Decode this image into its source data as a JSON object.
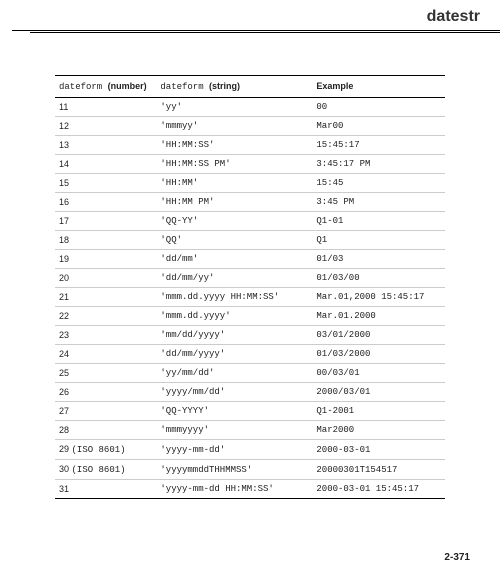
{
  "title": "datestr",
  "page_number": "2-371",
  "table": {
    "headers": {
      "col1_code": "dateform",
      "col1_label": "(number)",
      "col2_code": "dateform",
      "col2_label": "(string)",
      "col3_label": "Example"
    },
    "rows": [
      {
        "num": "11",
        "iso": "",
        "str": "'yy'",
        "ex": "00"
      },
      {
        "num": "12",
        "iso": "",
        "str": "'mmmyy'",
        "ex": "Mar00"
      },
      {
        "num": "13",
        "iso": "",
        "str": "'HH:MM:SS'",
        "ex": "15:45:17"
      },
      {
        "num": "14",
        "iso": "",
        "str": "'HH:MM:SS PM'",
        "ex": "3:45:17 PM"
      },
      {
        "num": "15",
        "iso": "",
        "str": "'HH:MM'",
        "ex": "15:45"
      },
      {
        "num": "16",
        "iso": "",
        "str": "'HH:MM PM'",
        "ex": "3:45 PM"
      },
      {
        "num": "17",
        "iso": "",
        "str": "'QQ-YY'",
        "ex": "Q1-01"
      },
      {
        "num": "18",
        "iso": "",
        "str": "'QQ'",
        "ex": "Q1"
      },
      {
        "num": "19",
        "iso": "",
        "str": "'dd/mm'",
        "ex": "01/03"
      },
      {
        "num": "20",
        "iso": "",
        "str": "'dd/mm/yy'",
        "ex": "01/03/00"
      },
      {
        "num": "21",
        "iso": "",
        "str": "'mmm.dd.yyyy HH:MM:SS'",
        "ex": "Mar.01,2000 15:45:17"
      },
      {
        "num": "22",
        "iso": "",
        "str": "'mmm.dd.yyyy'",
        "ex": "Mar.01.2000"
      },
      {
        "num": "23",
        "iso": "",
        "str": "'mm/dd/yyyy'",
        "ex": "03/01/2000"
      },
      {
        "num": "24",
        "iso": "",
        "str": "'dd/mm/yyyy'",
        "ex": "01/03/2000"
      },
      {
        "num": "25",
        "iso": "",
        "str": "'yy/mm/dd'",
        "ex": "00/03/01"
      },
      {
        "num": "26",
        "iso": "",
        "str": "'yyyy/mm/dd'",
        "ex": "2000/03/01"
      },
      {
        "num": "27",
        "iso": "",
        "str": "'QQ-YYYY'",
        "ex": "Q1-2001"
      },
      {
        "num": "28",
        "iso": "",
        "str": "'mmmyyyy'",
        "ex": "Mar2000"
      },
      {
        "num": "29",
        "iso": "(ISO 8601)",
        "str": "'yyyy-mm-dd'",
        "ex": "2000-03-01"
      },
      {
        "num": "30",
        "iso": "(ISO 8601)",
        "str": "'yyyymmddTHHMMSS'",
        "ex": "20000301T154517"
      },
      {
        "num": "31",
        "iso": "",
        "str": "'yyyy-mm-dd HH:MM:SS'",
        "ex": "2000-03-01 15:45:17"
      }
    ]
  }
}
